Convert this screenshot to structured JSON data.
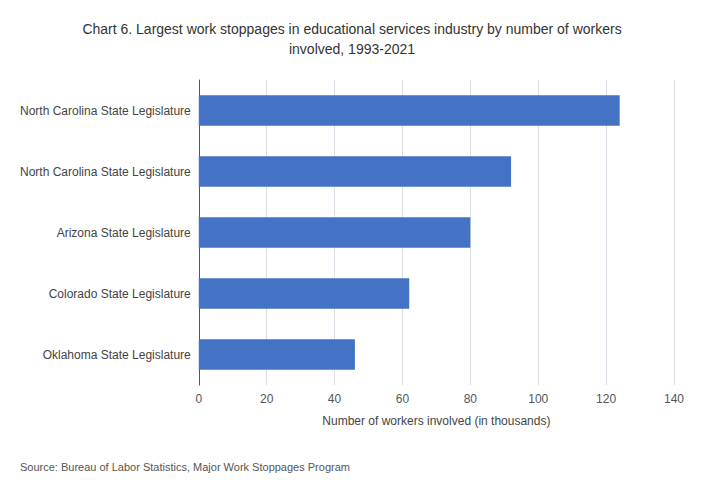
{
  "chart_data": {
    "type": "bar",
    "orientation": "horizontal",
    "title": "Chart 6. Largest work stoppages in educational services industry by number of workers\ninvolved, 1993-2021",
    "categories": [
      "Oklahoma State Legislature",
      "Colorado State Legislature",
      "Arizona State Legislature",
      "North Carolina State Legislature",
      "North Carolina State Legislature"
    ],
    "values": [
      46,
      62,
      80,
      92,
      124
    ],
    "color": "#4472C4",
    "xlabel": "Number of workers involved (in thousands)",
    "xlim": [
      0,
      140
    ],
    "xticks": [
      0,
      20,
      40,
      60,
      80,
      100,
      120,
      140
    ],
    "grid": true,
    "annotations": [
      "Source: Bureau of Labor Statistics, Major Work Stoppages Program"
    ]
  }
}
